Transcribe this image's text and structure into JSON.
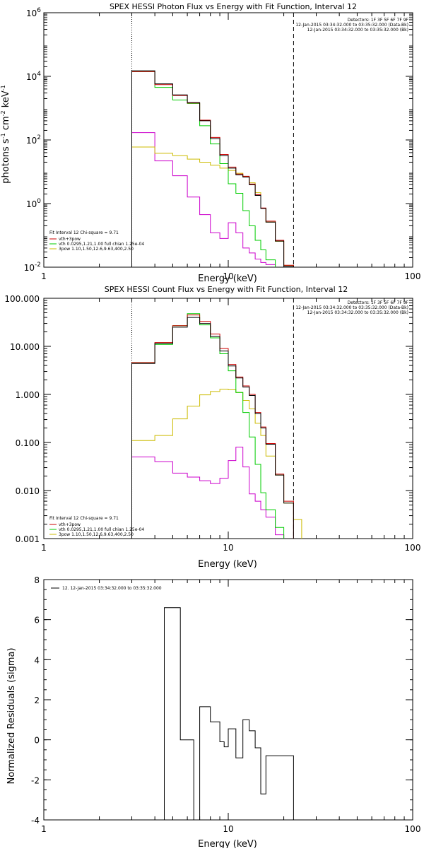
{
  "chart_data": [
    {
      "type": "line",
      "title": "SPEX HESSI Photon Flux vs Energy with Fit Function, Interval 12",
      "xlabel": "Energy (keV)",
      "ylabel_main": "photons s",
      "ylabel_sup1": "-1",
      "ylabel_mid": " cm",
      "ylabel_sup2": "-2",
      "ylabel_end": " keV",
      "ylabel_sup3": "-1",
      "xscale": "log",
      "yscale": "log",
      "xlim": [
        1,
        100
      ],
      "ylim": [
        0.01,
        1000000
      ],
      "xticks": [
        {
          "v": 1,
          "label": "1"
        },
        {
          "v": 10,
          "label": "10"
        },
        {
          "v": 100,
          "label": "100"
        }
      ],
      "yticks": [
        {
          "v": 0.01,
          "base": "10",
          "exp": "-2"
        },
        {
          "v": 1,
          "base": "10",
          "exp": "0"
        },
        {
          "v": 100,
          "base": "10",
          "exp": "2"
        },
        {
          "v": 10000,
          "base": "10",
          "exp": "4"
        },
        {
          "v": 1000000,
          "base": "10",
          "exp": "6"
        }
      ],
      "top_right_text": [
        "Detectors: 1F 3F 5F 6F 7F 9F",
        "12-Jan-2015 03:34:32.000 to 03:35:32.000 (Data-Bk)",
        "12-Jan-2015 03:34:32.000 to 03:35:32.000 (Bk)"
      ],
      "fit_text": [
        "Fit Interval 12   Chi-square = 9.71",
        "vth+3pow",
        "vth 0.0295,1.21,1.00  full chian 1.25e-04",
        "3pow 1.10,1.50,12.6,9.63,400,2.50"
      ],
      "vlines": [
        {
          "x": 3.0,
          "style": "dotted"
        },
        {
          "x": 22.6,
          "style": "dashed"
        }
      ],
      "edges": [
        3.0,
        3.5,
        4.0,
        4.5,
        5.0,
        5.5,
        6.0,
        6.5,
        7.0,
        7.5,
        8.0,
        8.5,
        9.0,
        9.5,
        10.0,
        11.0,
        12.0,
        13.0,
        14.0,
        15.0,
        16.0,
        18.0,
        20.0,
        22.6,
        25.0
      ],
      "series": [
        {
          "name": "data",
          "color": "#000000",
          "values": [
            15000,
            15000,
            5800,
            5800,
            2600,
            2600,
            1500,
            1500,
            400,
            400,
            110,
            110,
            32,
            32,
            13,
            8,
            6.8,
            3.9,
            1.8,
            0.7,
            0.26,
            0.066,
            0.0108,
            null
          ]
        },
        {
          "name": "vth+3pow",
          "color": "#cc0000",
          "values": [
            14000,
            14000,
            5500,
            5500,
            2500,
            2500,
            1450,
            1450,
            420,
            420,
            120,
            120,
            35,
            35,
            14,
            8.5,
            7.2,
            4.1,
            1.9,
            0.73,
            0.28,
            0.07,
            0.0115,
            null
          ]
        },
        {
          "name": "vth",
          "color": "#00cc00",
          "values": [
            14000,
            14000,
            4500,
            4500,
            1800,
            1800,
            1400,
            1400,
            280,
            280,
            75,
            75,
            18,
            18,
            4.2,
            2.1,
            0.6,
            0.2,
            0.07,
            0.035,
            0.017,
            0.0079,
            null,
            null
          ]
        },
        {
          "name": "3pow",
          "color": "#ccbb00",
          "values": [
            60,
            60,
            38,
            38,
            32,
            32,
            25,
            25,
            20,
            20,
            16,
            16,
            13,
            13,
            11,
            9,
            7,
            4.5,
            2.2,
            0.7,
            0.26,
            0.065,
            0.011,
            0.0065
          ]
        },
        {
          "name": "bk",
          "color": "#cc00cc",
          "values": [
            170,
            170,
            22,
            22,
            7.5,
            7.5,
            1.6,
            1.6,
            0.45,
            0.45,
            0.12,
            0.12,
            0.08,
            0.08,
            0.25,
            0.12,
            0.04,
            0.028,
            0.018,
            0.014,
            0.012,
            0.006,
            null,
            null
          ]
        }
      ]
    },
    {
      "type": "line",
      "title": "SPEX HESSI Count Flux vs Energy with Fit Function, Interval 12",
      "xlabel": "Energy (keV)",
      "xscale": "log",
      "yscale": "log",
      "xlim": [
        1,
        100
      ],
      "ylim": [
        0.001,
        100
      ],
      "xticks": [
        {
          "v": 1,
          "label": "1"
        },
        {
          "v": 10,
          "label": "10"
        },
        {
          "v": 100,
          "label": "100"
        }
      ],
      "yticks": [
        {
          "v": 0.001,
          "label": "0.001"
        },
        {
          "v": 0.01,
          "label": "0.010"
        },
        {
          "v": 0.1,
          "label": "0.100"
        },
        {
          "v": 1,
          "label": "1.000"
        },
        {
          "v": 10,
          "label": "10.000"
        },
        {
          "v": 100,
          "label": "100.000"
        }
      ],
      "top_right_text": [
        "Detectors: 1F 3F 5F 6F 7F 9F",
        "12-Jan-2015 03:34:32.000 to 03:35:32.000 (Data-Bk)",
        "12-Jan-2015 03:34:32.000 to 03:35:32.000 (Bk)"
      ],
      "fit_text": [
        "Fit Interval 12   Chi-square = 9.71",
        "vth+3pow",
        "vth 0.0295,1.21,1.00  full chian 1.25e-04",
        "3pow 1.10,1.50,12.6,9.63,400,2.50"
      ],
      "vlines": [
        {
          "x": 3.0,
          "style": "dotted"
        },
        {
          "x": 22.6,
          "style": "dashed"
        }
      ],
      "edges": [
        3.0,
        3.5,
        4.0,
        4.5,
        5.0,
        5.5,
        6.0,
        6.5,
        7.0,
        7.5,
        8.0,
        8.5,
        9.0,
        9.5,
        10.0,
        11.0,
        12.0,
        13.0,
        14.0,
        15.0,
        16.0,
        18.0,
        20.0,
        22.6,
        25.0
      ],
      "series": [
        {
          "name": "data",
          "color": "#000000",
          "values": [
            4.4,
            4.4,
            11.5,
            11.5,
            25,
            25,
            40,
            40,
            30,
            30,
            16,
            16,
            8,
            8,
            3.9,
            2.2,
            1.42,
            0.95,
            0.4,
            0.2,
            0.092,
            0.021,
            0.0055,
            null
          ]
        },
        {
          "name": "vth+3pow",
          "color": "#cc0000",
          "values": [
            4.6,
            4.6,
            12,
            12,
            27,
            27,
            45,
            45,
            33,
            33,
            18,
            18,
            9,
            9,
            4.2,
            2.3,
            1.5,
            1,
            0.42,
            0.21,
            0.095,
            0.022,
            0.006,
            null
          ]
        },
        {
          "name": "vth",
          "color": "#00cc00",
          "values": [
            4.6,
            4.6,
            11,
            11,
            27,
            27,
            48,
            48,
            28,
            28,
            15,
            15,
            7,
            7,
            3.1,
            1.1,
            0.42,
            0.13,
            0.035,
            0.009,
            0.004,
            0.0017,
            null,
            null
          ]
        },
        {
          "name": "3pow",
          "color": "#ccbb00",
          "values": [
            0.11,
            0.11,
            0.14,
            0.14,
            0.31,
            0.31,
            0.57,
            0.57,
            0.98,
            0.98,
            1.15,
            1.15,
            1.28,
            1.28,
            1.25,
            1.1,
            0.75,
            0.5,
            0.25,
            0.14,
            0.052,
            0.021,
            0.0055,
            0.0025
          ]
        },
        {
          "name": "bk",
          "color": "#cc00cc",
          "values": [
            0.05,
            0.05,
            0.04,
            0.04,
            0.023,
            0.023,
            0.019,
            0.019,
            0.016,
            0.016,
            0.014,
            0.014,
            0.018,
            0.018,
            0.042,
            0.08,
            0.031,
            0.0085,
            0.006,
            0.004,
            0.0028,
            0.0012,
            null,
            null
          ]
        }
      ]
    },
    {
      "type": "line",
      "title": "",
      "xlabel": "Energy (keV)",
      "ylabel": "Normalized Residuals (sigma)",
      "xscale": "log",
      "yscale": "linear",
      "xlim": [
        1,
        100
      ],
      "ylim": [
        -4,
        8
      ],
      "xticks": [
        {
          "v": 1,
          "label": "1"
        },
        {
          "v": 10,
          "label": "10"
        },
        {
          "v": 100,
          "label": "100"
        }
      ],
      "yticks": [
        {
          "v": -4,
          "label": "-4"
        },
        {
          "v": -2,
          "label": "-2"
        },
        {
          "v": 0,
          "label": "0"
        },
        {
          "v": 2,
          "label": "2"
        },
        {
          "v": 4,
          "label": "4"
        },
        {
          "v": 6,
          "label": "6"
        },
        {
          "v": 8,
          "label": "8"
        }
      ],
      "legend": [
        "12. 12-Jan-2015 03:34:32.000 to 03:35:32.000"
      ],
      "edges": [
        3.0,
        4.5,
        5.5,
        6.5,
        7.0,
        8.0,
        9.0,
        9.5,
        10.0,
        11.0,
        12.0,
        13.0,
        14.0,
        15.0,
        16.0,
        18.0,
        20.0,
        22.6
      ],
      "series": [
        {
          "name": "residuals",
          "color": "#000000",
          "values": [
            -4,
            6.6,
            0,
            -4.1,
            1.65,
            0.9,
            -0.1,
            -0.35,
            0.55,
            -0.9,
            1.0,
            0.45,
            -0.4,
            -2.7,
            -0.8,
            -0.8,
            -0.8
          ]
        }
      ]
    }
  ]
}
